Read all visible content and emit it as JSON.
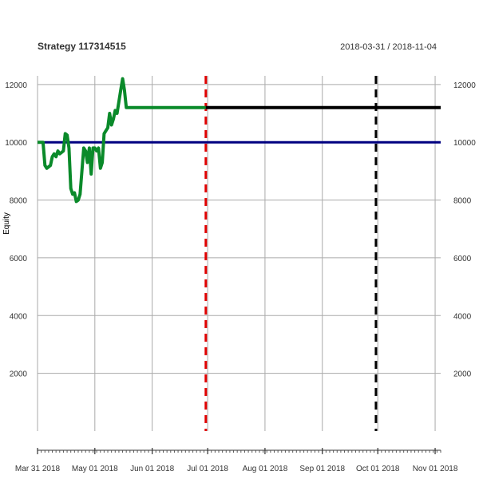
{
  "chart_data": {
    "type": "line",
    "title": "Strategy 117314515",
    "date_range": "2018-03-31 / 2018-11-04",
    "ylabel": "Equity",
    "ylim": [
      0,
      12300
    ],
    "xlim": [
      "2018-03-31",
      "2018-11-04"
    ],
    "grid": true,
    "x_ticks": [
      {
        "date": "2018-03-31",
        "label": "Mar 31 2018"
      },
      {
        "date": "2018-05-01",
        "label": "May 01 2018"
      },
      {
        "date": "2018-06-01",
        "label": "Jun 01 2018"
      },
      {
        "date": "2018-07-01",
        "label": "Jul 01 2018"
      },
      {
        "date": "2018-08-01",
        "label": "Aug 01 2018"
      },
      {
        "date": "2018-09-01",
        "label": "Sep 01 2018"
      },
      {
        "date": "2018-10-01",
        "label": "Oct 01 2018"
      },
      {
        "date": "2018-11-01",
        "label": "Nov 01 2018"
      }
    ],
    "y_ticks": [
      2000,
      4000,
      6000,
      8000,
      10000,
      12000
    ],
    "series": [
      {
        "color": "#0a8a2a",
        "points": [
          [
            "2018-03-31",
            10000
          ],
          [
            "2018-04-02",
            10000
          ],
          [
            "2018-04-03",
            10000
          ],
          [
            "2018-04-04",
            9200
          ],
          [
            "2018-04-05",
            9100
          ],
          [
            "2018-04-06",
            9150
          ],
          [
            "2018-04-07",
            9200
          ],
          [
            "2018-04-08",
            9500
          ],
          [
            "2018-04-09",
            9600
          ],
          [
            "2018-04-10",
            9500
          ],
          [
            "2018-04-11",
            9700
          ],
          [
            "2018-04-12",
            9600
          ],
          [
            "2018-04-13",
            9650
          ],
          [
            "2018-04-14",
            9700
          ],
          [
            "2018-04-15",
            10300
          ],
          [
            "2018-04-16",
            10250
          ],
          [
            "2018-04-17",
            9800
          ],
          [
            "2018-04-18",
            8400
          ],
          [
            "2018-04-19",
            8200
          ],
          [
            "2018-04-20",
            8250
          ],
          [
            "2018-04-21",
            7950
          ],
          [
            "2018-04-22",
            8000
          ],
          [
            "2018-04-23",
            8200
          ],
          [
            "2018-04-24",
            9000
          ],
          [
            "2018-04-25",
            9800
          ],
          [
            "2018-04-26",
            9700
          ],
          [
            "2018-04-27",
            9300
          ],
          [
            "2018-04-28",
            9800
          ],
          [
            "2018-04-29",
            8900
          ],
          [
            "2018-04-30",
            9800
          ],
          [
            "2018-05-01",
            9800
          ],
          [
            "2018-05-02",
            9700
          ],
          [
            "2018-05-03",
            9800
          ],
          [
            "2018-05-04",
            9100
          ],
          [
            "2018-05-05",
            9300
          ],
          [
            "2018-05-06",
            10300
          ],
          [
            "2018-05-07",
            10400
          ],
          [
            "2018-05-08",
            10500
          ],
          [
            "2018-05-09",
            11000
          ],
          [
            "2018-05-10",
            10600
          ],
          [
            "2018-05-11",
            10800
          ],
          [
            "2018-05-12",
            11100
          ],
          [
            "2018-05-13",
            11000
          ],
          [
            "2018-05-14",
            11400
          ],
          [
            "2018-05-15",
            11800
          ],
          [
            "2018-05-16",
            12200
          ],
          [
            "2018-05-17",
            11800
          ],
          [
            "2018-05-18",
            11200
          ],
          [
            "2018-06-30",
            11200
          ]
        ]
      },
      {
        "color": "#000000",
        "points": [
          [
            "2018-06-30",
            11200
          ],
          [
            "2018-11-04",
            11200
          ]
        ]
      }
    ],
    "reference_lines": [
      {
        "type": "horizontal",
        "y": 10000,
        "color": "#000080",
        "style": "solid"
      },
      {
        "type": "vertical",
        "x": "2018-06-30",
        "color": "#e00000",
        "style": "dashed"
      },
      {
        "type": "vertical",
        "x": "2018-09-30",
        "color": "#000000",
        "style": "dashed"
      }
    ]
  }
}
